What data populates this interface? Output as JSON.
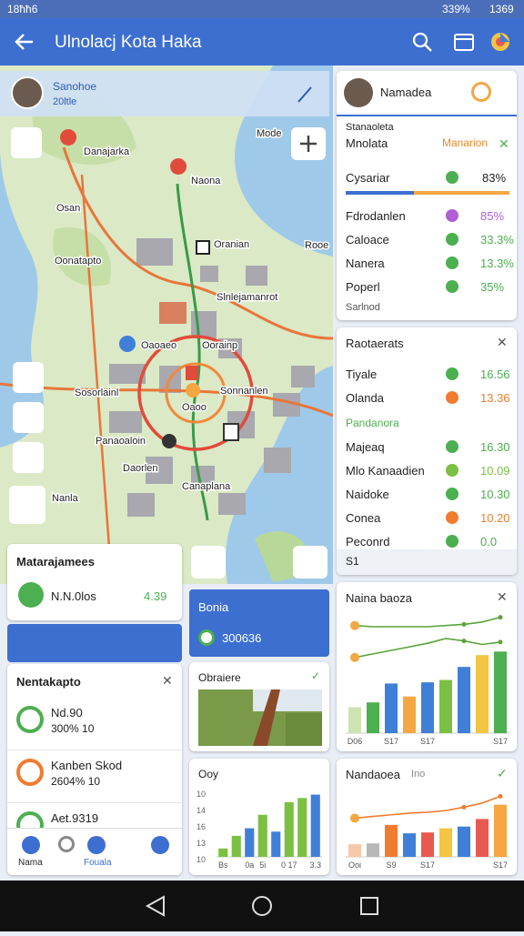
{
  "status_bar": {
    "left": "18ħħ6",
    "battery": "339%",
    "time": "1369"
  },
  "app_bar": {
    "title": "Ulnolacj Kota Haka"
  },
  "profile": {
    "name": "Sanohoe",
    "subtitle": "20ltle"
  },
  "map": {
    "labels": [
      "Danajarka",
      "Naona",
      "Osan",
      "Oonatapto",
      "Oranian",
      "Mode",
      "Rooe",
      "Slnlejamanrot",
      "Oaoaeo",
      "Oorainp",
      "Sosorlainl",
      "Sonnanlen",
      "Oaoo",
      "Panaoaloin",
      "Daorlen",
      "Nanla",
      "Canaplana"
    ]
  },
  "summary_card": {
    "title": "Matarajamees",
    "label": "N.N.0los",
    "value": "4.39"
  },
  "list_card": {
    "title": "Nentakapto",
    "items": [
      {
        "title": "Nd.90",
        "sub": "300% 10"
      },
      {
        "title": "Kanben Skod",
        "sub": "2604% 10"
      },
      {
        "title": "Aet.9319"
      }
    ]
  },
  "tabs": [
    "Nama",
    "Fouala"
  ],
  "blue_card": {
    "title": "Bonia",
    "value": "300636"
  },
  "image_card": {
    "title": "Obraiere"
  },
  "small_chart": {
    "title": "Ooy",
    "y_labels": [
      "10",
      "14",
      "16",
      "13",
      "10"
    ],
    "chart": {
      "type": "bar",
      "categories": [
        "Bs",
        null,
        "0a",
        "5i",
        null,
        "0 17",
        null,
        "3.3"
      ],
      "values": [
        1,
        2.5,
        3.4,
        5,
        3,
        6.5,
        7,
        7.4
      ],
      "colors": [
        "#7bc043",
        "#7bc043",
        "#3f7fd8",
        "#7bc043",
        "#3f7fd8",
        "#7bc043",
        "#7bc043",
        "#3f7fd8"
      ],
      "ylim": [
        0,
        8
      ]
    }
  },
  "profile_card": {
    "name": "Namadea",
    "section": "Stanaoleta",
    "tabs": [
      "Mnolata",
      "Manarion"
    ],
    "progress": {
      "label": "Cysariar",
      "value": 83,
      "value_label": "83%"
    },
    "rows": [
      {
        "label": "Fdrodanlen",
        "value": "85%",
        "color": "#b05fd6"
      },
      {
        "label": "Caloace",
        "value": "33.3%",
        "color": "#4caf50"
      },
      {
        "label": "Nanera",
        "value": "13.3%",
        "color": "#4caf50"
      },
      {
        "label": "Poperl",
        "value": "35%",
        "color": "#4caf50"
      }
    ],
    "footer": "Sarlnod"
  },
  "stats_card": {
    "title": "Raotaerats",
    "rows": [
      {
        "label": "Tiyale",
        "value": "16.56",
        "color": "#4caf50"
      },
      {
        "label": "Olanda",
        "value": "13.36",
        "color": "#f07c30"
      }
    ],
    "group": "Pandanora",
    "rows2": [
      {
        "label": "Majeaq",
        "value": "16.30",
        "color": "#4caf50"
      },
      {
        "label": "Mlo Kanaadien",
        "value": "10.09",
        "color": "#7bc043"
      },
      {
        "label": "Naidoke",
        "value": "10.30",
        "color": "#4caf50"
      },
      {
        "label": "Conea",
        "value": "10.20",
        "color": "#f07c30"
      },
      {
        "label": "Peconrd",
        "value": "0.0",
        "color": "#4caf50"
      }
    ],
    "footer": "S1"
  },
  "line_card": {
    "title": "Naina baoza",
    "chart": {
      "type": "bar",
      "categories": [
        "D06",
        null,
        "S17",
        null,
        "S17",
        null,
        null,
        null,
        "S17"
      ],
      "values": [
        2.2,
        2.6,
        4.2,
        3.1,
        4.3,
        4.5,
        5.6,
        6.6,
        6.9
      ],
      "colors": [
        "#cfe3b0",
        "#4caf50",
        "#3f7fd8",
        "#f4a742",
        "#3f7fd8",
        "#7bc043",
        "#3f7fd8",
        "#f4c542",
        "#4caf50"
      ],
      "ylim": [
        0,
        10
      ],
      "lines": [
        [
          9.1,
          9.0,
          9.0,
          9.0,
          9.0,
          9.1,
          9.2,
          9.4,
          9.8
        ],
        [
          6.4,
          6.7,
          7.0,
          7.3,
          7.6,
          8.0,
          7.8,
          7.5,
          7.7
        ]
      ],
      "line_color": "#5aa33a"
    }
  },
  "bar_card": {
    "title": "Nandaoea",
    "subtitle": "Ino",
    "chart": {
      "type": "bar",
      "categories": [
        "Ooi",
        null,
        "S9",
        null,
        "S17",
        null,
        null,
        null,
        "S17"
      ],
      "values": [
        1.5,
        1.6,
        3.8,
        2.8,
        2.9,
        3.4,
        3.6,
        4.5,
        6.2
      ],
      "colors": [
        "#f6c8a8",
        "#b8b8b8",
        "#f07c30",
        "#3f7fd8",
        "#e85a4f",
        "#f4c542",
        "#3f7fd8",
        "#e85a4f",
        "#f4a742"
      ],
      "ylim": [
        0,
        8
      ],
      "lines": [
        [
          4.6,
          4.8,
          5.0,
          5.2,
          5.3,
          5.5,
          5.9,
          6.4,
          7.2
        ]
      ],
      "line_color": "#f07c30"
    }
  }
}
